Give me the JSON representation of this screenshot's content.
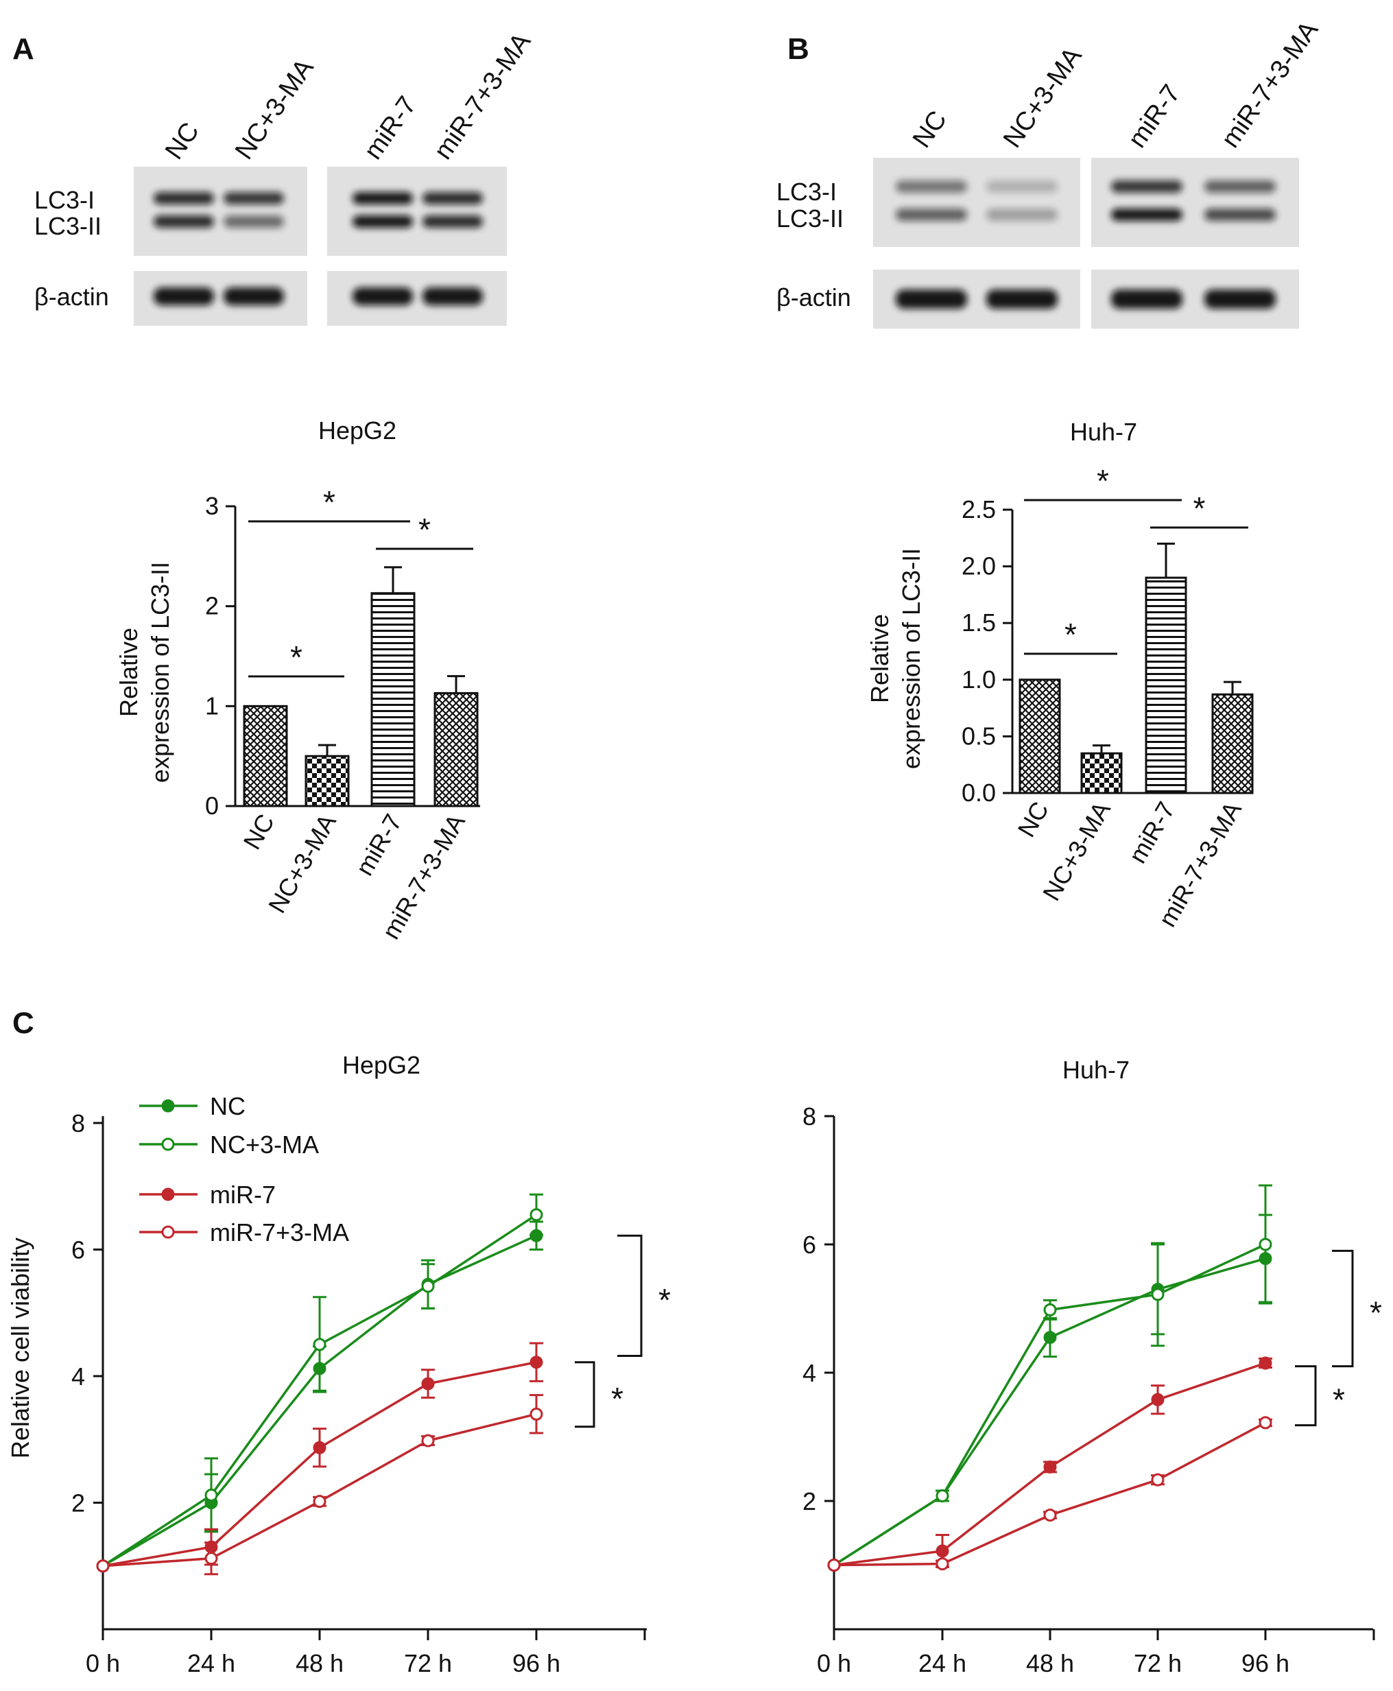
{
  "panels": {
    "a": "A",
    "b": "B",
    "c": "C"
  },
  "blots": [
    {
      "lanes": [
        "NC",
        "NC+3-MA",
        "miR-7",
        "miR-7+3-MA"
      ],
      "row1_labels": [
        "LC3-I",
        "LC3-II"
      ],
      "row2_label": "β-actin",
      "lc3i_intensity": [
        0.85,
        0.8,
        0.95,
        0.85
      ],
      "lc3ii_intensity": [
        0.85,
        0.55,
        0.95,
        0.85
      ],
      "actin_intensity": [
        0.95,
        0.95,
        0.95,
        0.95
      ]
    },
    {
      "lanes": [
        "NC",
        "NC+3-MA",
        "miR-7",
        "miR-7+3-MA"
      ],
      "row1_labels": [
        "LC3-I",
        "LC3-II"
      ],
      "row2_label": "β-actin",
      "lc3i_intensity": [
        0.5,
        0.22,
        0.8,
        0.6
      ],
      "lc3ii_intensity": [
        0.6,
        0.3,
        0.95,
        0.7
      ],
      "actin_intensity": [
        0.95,
        0.95,
        0.95,
        0.95
      ]
    }
  ],
  "chart_data": [
    {
      "type": "bar",
      "title": "HepG2",
      "ylabel": "Relative expression of LC3-II",
      "ylabel_lines": [
        "Relative",
        "expression of LC3-II"
      ],
      "categories": [
        "NC",
        "NC+3-MA",
        "miR-7",
        "miR-7+3-MA"
      ],
      "values": [
        1.0,
        0.5,
        2.13,
        1.13
      ],
      "errors": [
        0,
        0.11,
        0.26,
        0.17
      ],
      "patterns": [
        "crosshatch",
        "checker",
        "horizontal",
        "crosshatch"
      ],
      "ylim": [
        0,
        3
      ],
      "yticks": [
        "0",
        "1",
        "2",
        "3"
      ],
      "significance": [
        {
          "from": 0,
          "to": 1,
          "label": "*"
        },
        {
          "from": 0,
          "to": 2,
          "label": "*"
        },
        {
          "from": 2,
          "to": 3,
          "label": "*"
        }
      ]
    },
    {
      "type": "bar",
      "title": "Huh-7",
      "ylabel": "Relative expression of LC3-II",
      "ylabel_lines": [
        "Relative",
        "expression of LC3-II"
      ],
      "categories": [
        "NC",
        "NC+3-MA",
        "miR-7",
        "miR-7+3-MA"
      ],
      "values": [
        1.0,
        0.35,
        1.9,
        0.87
      ],
      "errors": [
        0,
        0.07,
        0.3,
        0.11
      ],
      "patterns": [
        "crosshatch",
        "checker",
        "horizontal",
        "crosshatch"
      ],
      "ylim": [
        0,
        2.5
      ],
      "yticks": [
        "0.0",
        "0.5",
        "1.0",
        "1.5",
        "2.0",
        "2.5"
      ],
      "significance": [
        {
          "from": 0,
          "to": 1,
          "label": "*"
        },
        {
          "from": 0,
          "to": 2,
          "label": "*"
        },
        {
          "from": 2,
          "to": 3,
          "label": "*"
        }
      ]
    },
    {
      "type": "line",
      "title": "HepG2",
      "ylabel": "Relative cell viability",
      "x": [
        "0 h",
        "24 h",
        "48 h",
        "72 h",
        "96 h"
      ],
      "ylim": [
        0,
        8
      ],
      "yticks": [
        "2",
        "4",
        "6",
        "8"
      ],
      "legend": "top-left",
      "series": [
        {
          "name": "NC",
          "values": [
            1.0,
            2.0,
            4.12,
            5.45,
            6.22
          ],
          "errors": [
            0,
            0.45,
            0.35,
            0.38,
            0.22
          ],
          "color": "#1a8c1a",
          "filled": true
        },
        {
          "name": "NC+3-MA",
          "values": [
            1.0,
            2.12,
            4.5,
            5.42,
            6.55
          ],
          "errors": [
            0,
            0.58,
            0.75,
            0.35,
            0.32
          ],
          "color": "#1a8c1a",
          "filled": false
        },
        {
          "name": "miR-7",
          "values": [
            1.0,
            1.3,
            2.87,
            3.88,
            4.22
          ],
          "errors": [
            0,
            0.28,
            0.3,
            0.22,
            0.3
          ],
          "color": "#c0282d",
          "filled": true
        },
        {
          "name": "miR-7+3-MA",
          "values": [
            1.0,
            1.12,
            2.02,
            2.98,
            3.4
          ],
          "errors": [
            0,
            0.25,
            0.07,
            0.07,
            0.3
          ],
          "color": "#c0282d",
          "filled": false
        }
      ],
      "significance": [
        "*",
        "*"
      ]
    },
    {
      "type": "line",
      "title": "Huh-7",
      "ylabel": "",
      "x": [
        "0 h",
        "24 h",
        "48 h",
        "72 h",
        "96 h"
      ],
      "ylim": [
        0,
        8
      ],
      "yticks": [
        "2",
        "4",
        "6",
        "8"
      ],
      "series": [
        {
          "name": "NC",
          "values": [
            1.0,
            2.08,
            4.55,
            5.3,
            5.78
          ],
          "errors": [
            0,
            0.08,
            0.3,
            0.7,
            0.68
          ],
          "color": "#1a8c1a",
          "filled": true
        },
        {
          "name": "NC+3-MA",
          "values": [
            1.0,
            2.08,
            4.98,
            5.22,
            6.0
          ],
          "errors": [
            0,
            0.08,
            0.15,
            0.8,
            0.92
          ],
          "color": "#1a8c1a",
          "filled": false
        },
        {
          "name": "miR-7",
          "values": [
            1.0,
            1.22,
            2.53,
            3.58,
            4.15
          ],
          "errors": [
            0,
            0.25,
            0.08,
            0.22,
            0.07
          ],
          "color": "#c0282d",
          "filled": true
        },
        {
          "name": "miR-7+3-MA",
          "values": [
            1.0,
            1.02,
            1.78,
            2.33,
            3.22
          ],
          "errors": [
            0,
            0.05,
            0.05,
            0.07,
            0.05
          ],
          "color": "#c0282d",
          "filled": false
        }
      ],
      "significance": [
        "*",
        "*"
      ]
    }
  ]
}
